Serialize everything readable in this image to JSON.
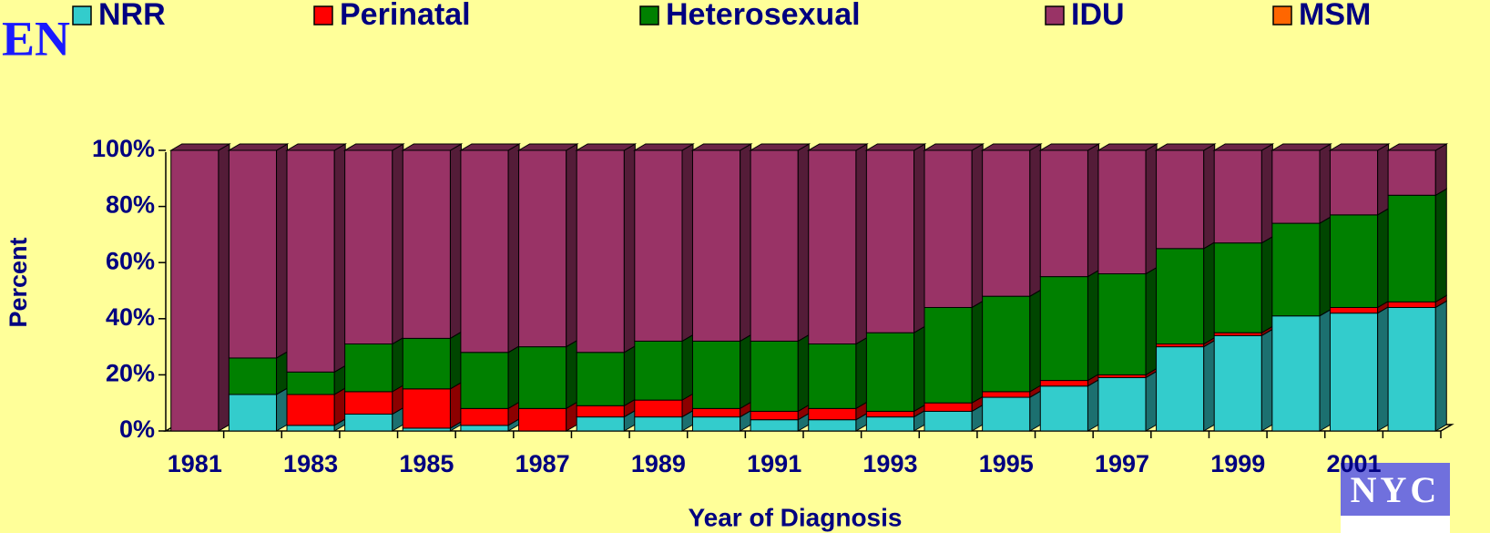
{
  "chart_data": {
    "type": "stacked_bar_3d",
    "title": "EN",
    "x_label": "Year of Diagnosis",
    "y_label": "Percent",
    "categories": [
      "1981",
      null,
      "1983",
      null,
      "1985",
      null,
      "1987",
      null,
      "1989",
      null,
      "1991",
      null,
      "1993",
      null,
      "1995",
      null,
      "1997",
      null,
      "1999",
      null,
      "2001",
      null
    ],
    "series": [
      {
        "name": "NRR",
        "color": "#33CCCC",
        "values": [
          0,
          13,
          2,
          6,
          1,
          2,
          0,
          5,
          5,
          5,
          4,
          4,
          5,
          7,
          12,
          16,
          19,
          30,
          34,
          41,
          42,
          44
        ]
      },
      {
        "name": "Perinatal",
        "color": "#FF0000",
        "values": [
          0,
          0,
          11,
          8,
          14,
          6,
          8,
          4,
          6,
          3,
          3,
          4,
          2,
          3,
          2,
          2,
          1,
          1,
          1,
          0,
          2,
          2
        ]
      },
      {
        "name": "Heterosexual",
        "color": "#008000",
        "values": [
          0,
          13,
          8,
          17,
          18,
          20,
          22,
          19,
          21,
          24,
          25,
          23,
          28,
          34,
          34,
          37,
          36,
          34,
          32,
          33,
          33,
          38
        ]
      },
      {
        "name": "IDU",
        "color": "#993366",
        "values": [
          100,
          74,
          79,
          69,
          67,
          72,
          70,
          72,
          68,
          68,
          68,
          69,
          65,
          56,
          52,
          45,
          44,
          35,
          33,
          26,
          23,
          16
        ]
      },
      {
        "name": "MSM",
        "color": "#FF6600",
        "values": [
          0,
          0,
          0,
          0,
          0,
          0,
          0,
          0,
          0,
          0,
          0,
          0,
          0,
          0,
          0,
          0,
          0,
          0,
          0,
          0,
          0,
          0
        ]
      }
    ],
    "ylim": [
      0,
      100
    ],
    "yticks": [
      {
        "value": 0,
        "label": "0%"
      },
      {
        "value": 20,
        "label": "20%"
      },
      {
        "value": 40,
        "label": "40%"
      },
      {
        "value": 60,
        "label": "60%"
      },
      {
        "value": 80,
        "label": "80%"
      },
      {
        "value": 100,
        "label": "100%"
      }
    ],
    "grid": false,
    "legend": "top"
  },
  "logo": "NYC"
}
